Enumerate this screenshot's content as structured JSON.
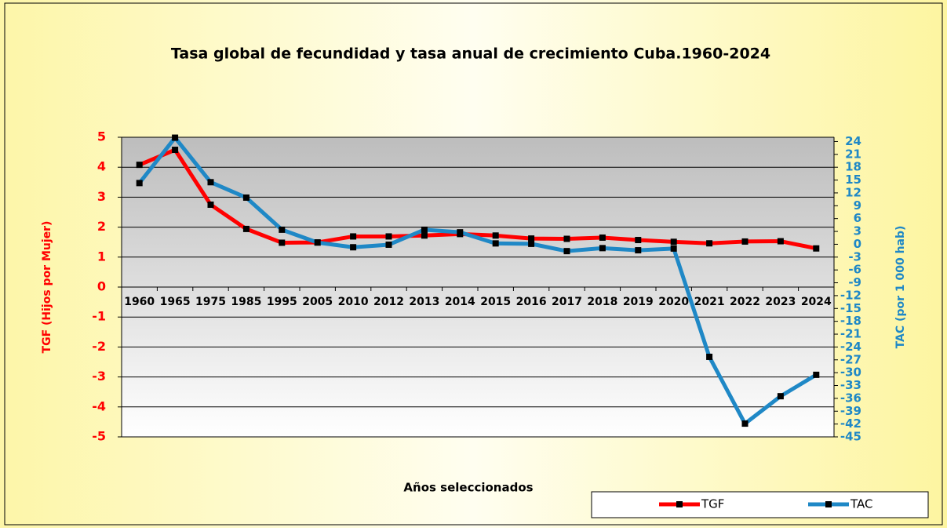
{
  "chart_data": {
    "type": "line",
    "title": "Tasa global de fecundidad y tasa anual de crecimiento Cuba.1960-2024",
    "x_label": "Años seleccionados",
    "y_label": "TGF (Hijos por Mujer)",
    "y2_label": "TAC (por 1 000 hab)",
    "categories": [
      "1960",
      "1965",
      "1975",
      "1985",
      "1995",
      "2005",
      "2010",
      "2012",
      "2013",
      "2014",
      "2015",
      "2016",
      "2017",
      "2018",
      "2019",
      "2020",
      "2021",
      "2022",
      "2023",
      "2024"
    ],
    "series": [
      {
        "name": "TGF",
        "color": "#ff0000",
        "axis": "y",
        "values": [
          4.08,
          4.58,
          2.75,
          1.94,
          1.48,
          1.49,
          1.69,
          1.69,
          1.72,
          1.77,
          1.72,
          1.62,
          1.61,
          1.65,
          1.57,
          1.51,
          1.46,
          1.52,
          1.53,
          1.29
        ]
      },
      {
        "name": "TAC",
        "color": "#1f88c6",
        "axis": "y2",
        "values": [
          14.3,
          24.9,
          14.5,
          10.9,
          3.4,
          0.4,
          -0.7,
          -0.1,
          3.4,
          2.8,
          0.2,
          0.1,
          -1.6,
          -0.9,
          -1.4,
          -1.0,
          -26.3,
          -41.9,
          -35.5,
          -30.5
        ]
      }
    ],
    "ylim": [
      -5,
      5
    ],
    "yticks": [
      -5,
      -4,
      -3,
      -2,
      -1,
      0,
      1,
      2,
      3,
      4,
      5
    ],
    "y2lim": [
      -45,
      25
    ],
    "y2ticks": [
      -45,
      -42,
      -39,
      -36,
      -33,
      -30,
      -27,
      -24,
      -21,
      -18,
      -15,
      -12,
      -9,
      -6,
      -3,
      0,
      3,
      6,
      9,
      12,
      15,
      18,
      21,
      24
    ],
    "grid": true,
    "legend": "bottom-right"
  }
}
